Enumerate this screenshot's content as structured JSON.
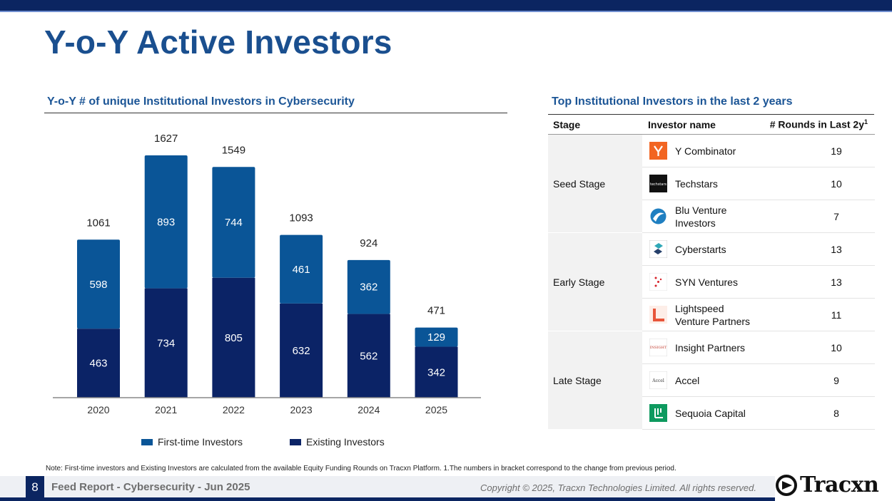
{
  "title": "Y-o-Y Active Investors",
  "left_section": {
    "heading": "Y-o-Y  # of unique Institutional Investors in Cybersecurity"
  },
  "right_section": {
    "heading": "Top Institutional Investors in the last 2 years"
  },
  "chart_data": {
    "type": "bar",
    "stacked": true,
    "title": "Y-o-Y  # of unique Institutional Investors in Cybersecurity",
    "categories": [
      "2020",
      "2021",
      "2022",
      "2023",
      "2024",
      "2025"
    ],
    "series": [
      {
        "name": "Existing Investors",
        "values": [
          463,
          734,
          805,
          632,
          562,
          342
        ],
        "color": "#0b2366"
      },
      {
        "name": "First-time Investors",
        "values": [
          598,
          893,
          744,
          461,
          362,
          129
        ],
        "color": "#0a5597"
      }
    ],
    "totals": [
      1061,
      1627,
      1549,
      1093,
      924,
      471
    ],
    "ylim": [
      0,
      1627
    ],
    "xlabel": "",
    "ylabel": "",
    "legend": [
      "First-time Investors",
      "Existing Investors"
    ],
    "legend_position": "bottom"
  },
  "legend": {
    "first_time": {
      "label": "First-time Investors",
      "color": "#0a5597"
    },
    "existing": {
      "label": "Existing Investors",
      "color": "#0b2366"
    }
  },
  "table": {
    "headers": {
      "stage": "Stage",
      "name": "Investor name",
      "rounds": "# Rounds in Last 2y",
      "rounds_sup": "1"
    },
    "groups": [
      {
        "stage": "Seed Stage",
        "rows": [
          {
            "name": "Y Combinator",
            "rounds": "19",
            "icon": "ycombinator-logo"
          },
          {
            "name": "Techstars",
            "rounds": "10",
            "icon": "techstars-logo",
            "logo_text": "techstars"
          },
          {
            "name": "Blu Venture Investors",
            "rounds": "7",
            "icon": "blu-venture-logo"
          }
        ]
      },
      {
        "stage": "Early Stage",
        "rows": [
          {
            "name": "Cyberstarts",
            "rounds": "13",
            "icon": "cyberstarts-logo"
          },
          {
            "name": "SYN Ventures",
            "rounds": "13",
            "icon": "syn-ventures-logo"
          },
          {
            "name": "Lightspeed Venture Partners",
            "rounds": "11",
            "icon": "lightspeed-logo"
          }
        ]
      },
      {
        "stage": "Late Stage",
        "rows": [
          {
            "name": "Insight Partners",
            "rounds": "10",
            "icon": "insight-partners-logo",
            "logo_text": "INSIGHT"
          },
          {
            "name": "Accel",
            "rounds": "9",
            "icon": "accel-logo",
            "logo_text": "Accel"
          },
          {
            "name": "Sequoia Capital",
            "rounds": "8",
            "icon": "sequoia-logo"
          }
        ]
      }
    ]
  },
  "footnote": "Note: First-time investors and Existing Investors are calculated from the available Equity Funding Rounds on Tracxn Platform. 1.The numbers in bracket correspond to the change from previous period.",
  "footer": {
    "page_number": "8",
    "report": "Feed Report - Cybersecurity - Jun 2025",
    "copyright": "Copyright © 2025, Tracxn Technologies Limited. All rights reserved.",
    "brand": "Tracxn"
  }
}
